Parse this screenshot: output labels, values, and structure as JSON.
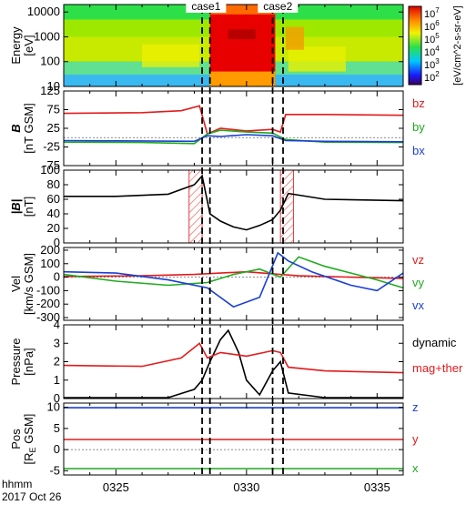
{
  "chart_data": [
    {
      "type": "heatmap",
      "ylabel": "Energy\n[eV]",
      "yscale": "log",
      "ylim": [
        10,
        20000
      ],
      "ytick_labels": [
        "10000",
        "1000",
        "100",
        "10"
      ],
      "colorbar": {
        "label": "[eV/cm^2-s-sr-eV]",
        "scale": "log",
        "range": [
          100,
          10000000
        ],
        "tick_labels": [
          "10^7",
          "10^6",
          "10^5",
          "10^4",
          "10^3",
          "10^2"
        ]
      },
      "regions": [
        {
          "x_start": "03:23",
          "x_end": "03:28",
          "level": "moderate"
        },
        {
          "x_start": "03:28.6",
          "x_end": "03:31.1",
          "level": "high"
        },
        {
          "x_start": "03:31.4",
          "x_end": "03:36",
          "level": "moderate"
        }
      ]
    },
    {
      "type": "line",
      "ylabel": "B\n[nT GSM]",
      "ylim": [
        -75,
        125
      ],
      "ytick_labels": [
        "125",
        "75",
        "25",
        "-25",
        "-75"
      ],
      "series": [
        {
          "name": "bz",
          "color": "#e41a1c",
          "x": [
            "03:23",
            "03:26",
            "03:27.5",
            "03:28.2",
            "03:28.5",
            "03:29",
            "03:30",
            "03:31",
            "03:31.3",
            "03:31.5",
            "03:33",
            "03:36"
          ],
          "y": [
            65,
            67,
            72,
            85,
            10,
            25,
            18,
            22,
            15,
            62,
            62,
            60
          ]
        },
        {
          "name": "by",
          "color": "#1faa1f",
          "x": [
            "03:23",
            "03:26",
            "03:28",
            "03:28.5",
            "03:29",
            "03:30",
            "03:31",
            "03:31.5",
            "03:33",
            "03:36"
          ],
          "y": [
            -12,
            -13,
            -16,
            10,
            20,
            15,
            12,
            -5,
            -12,
            -13
          ]
        },
        {
          "name": "bx",
          "color": "#1a3fd6",
          "x": [
            "03:23",
            "03:26",
            "03:28",
            "03:28.5",
            "03:29",
            "03:30",
            "03:31",
            "03:31.5",
            "03:33",
            "03:36"
          ],
          "y": [
            -8,
            -9,
            -10,
            5,
            3,
            8,
            5,
            -8,
            -10,
            -11
          ]
        }
      ]
    },
    {
      "type": "line",
      "ylabel": "|B|\n[nT]",
      "ylim": [
        0,
        100
      ],
      "ytick_labels": [
        "100",
        "80",
        "60",
        "40",
        "20",
        "0"
      ],
      "highlight_boxes": [
        [
          "03:27.8",
          "03:28.3"
        ],
        [
          "03:31.3",
          "03:31.8"
        ]
      ],
      "series": [
        {
          "color": "#000000",
          "x": [
            "03:23",
            "03:25",
            "03:27",
            "03:28",
            "03:28.3",
            "03:28.6",
            "03:29",
            "03:29.5",
            "03:30",
            "03:30.5",
            "03:31",
            "03:31.3",
            "03:31.6",
            "03:33",
            "03:36"
          ],
          "y": [
            64,
            64,
            67,
            80,
            92,
            40,
            30,
            22,
            18,
            24,
            32,
            45,
            68,
            60,
            58
          ]
        }
      ]
    },
    {
      "type": "line",
      "ylabel": "Vel\n[km/s GSM]",
      "ylim": [
        -320,
        220
      ],
      "ytick_labels": [
        "200",
        "100",
        "0",
        "-100",
        "-200",
        "-300"
      ],
      "series": [
        {
          "name": "vz",
          "color": "#e41a1c",
          "x": [
            "03:23",
            "03:26",
            "03:28",
            "03:29",
            "03:30",
            "03:31",
            "03:32",
            "03:34",
            "03:36"
          ],
          "y": [
            5,
            10,
            20,
            30,
            40,
            25,
            10,
            0,
            -10
          ]
        },
        {
          "name": "vy",
          "color": "#1faa1f",
          "x": [
            "03:23",
            "03:25",
            "03:27",
            "03:28.5",
            "03:29.5",
            "03:30.5",
            "03:31.3",
            "03:32",
            "03:33",
            "03:34",
            "03:35",
            "03:36"
          ],
          "y": [
            20,
            -30,
            -60,
            -40,
            20,
            60,
            0,
            150,
            80,
            30,
            -20,
            -80
          ]
        },
        {
          "name": "vx",
          "color": "#1a3fd6",
          "x": [
            "03:23",
            "03:25",
            "03:27",
            "03:28.5",
            "03:29.5",
            "03:30.5",
            "03:31.2",
            "03:31.6",
            "03:32.5",
            "03:34",
            "03:35",
            "03:36"
          ],
          "y": [
            40,
            30,
            -20,
            -80,
            -220,
            -150,
            180,
            120,
            40,
            -60,
            -100,
            30
          ]
        }
      ]
    },
    {
      "type": "line",
      "ylabel": "Pressure\n[nPa]",
      "ylim": [
        0,
        4
      ],
      "ytick_labels": [
        "4",
        "3",
        "2",
        "1",
        "0"
      ],
      "series": [
        {
          "name": "dynamic",
          "color": "#000000",
          "x": [
            "03:23",
            "03:27",
            "03:28",
            "03:28.3",
            "03:28.6",
            "03:29",
            "03:29.3",
            "03:29.7",
            "03:30",
            "03:30.5",
            "03:31",
            "03:31.3",
            "03:31.6",
            "03:33",
            "03:36"
          ],
          "y": [
            0.05,
            0.05,
            0.5,
            1.0,
            2.0,
            3.2,
            3.7,
            2.5,
            1.0,
            0.2,
            1.5,
            2.0,
            0.3,
            0.05,
            0.05
          ]
        },
        {
          "name": "mag+ther",
          "color": "#e41a1c",
          "x": [
            "03:23",
            "03:26",
            "03:27.5",
            "03:28.2",
            "03:28.5",
            "03:29",
            "03:30",
            "03:31",
            "03:31.3",
            "03:31.6",
            "03:33",
            "03:36"
          ],
          "y": [
            1.8,
            1.75,
            2.2,
            3.0,
            2.2,
            2.5,
            2.3,
            2.6,
            2.5,
            1.7,
            1.5,
            1.4
          ]
        }
      ]
    },
    {
      "type": "line",
      "ylabel": "Pos\n[RE GSM]",
      "ylim": [
        -6,
        11
      ],
      "ytick_labels": [
        "10",
        "5",
        "0",
        "-5"
      ],
      "series": [
        {
          "name": "z",
          "color": "#1a3fd6",
          "x": [
            "03:23",
            "03:36"
          ],
          "y": [
            9.9,
            9.9
          ]
        },
        {
          "name": "y",
          "color": "#e41a1c",
          "x": [
            "03:23",
            "03:36"
          ],
          "y": [
            2.4,
            2.4
          ]
        },
        {
          "name": "x",
          "color": "#1faa1f",
          "x": [
            "03:23",
            "03:36"
          ],
          "y": [
            -4.5,
            -4.5
          ]
        }
      ]
    }
  ],
  "xaxis": {
    "range": [
      "03:23",
      "03:36"
    ],
    "tick_labels": [
      "0325",
      "0330",
      "0335"
    ],
    "label_lines": [
      "hhmm",
      "2017 Oct 26"
    ]
  },
  "events": [
    {
      "name": "case1",
      "lines": [
        "03:28.3",
        "03:28.6"
      ]
    },
    {
      "name": "case2",
      "lines": [
        "03:31.0",
        "03:31.4"
      ]
    }
  ]
}
